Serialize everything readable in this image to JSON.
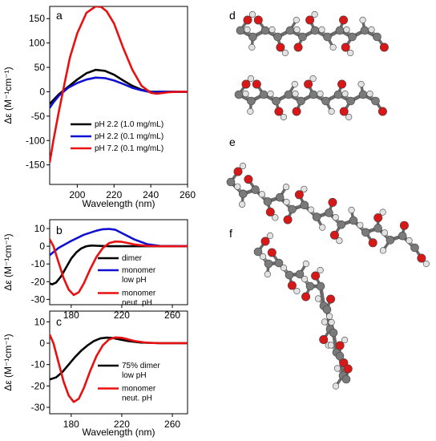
{
  "colors": {
    "black": "#000000",
    "blue": "#1010d0",
    "red": "#e81010",
    "atom_carbon": "#7a7a7a",
    "atom_oxygen": "#d81818",
    "atom_hydrogen": "#e2e2e2"
  },
  "chart_data": [
    {
      "id": "a",
      "panel_label": "a",
      "type": "line",
      "xlabel": "Wavelength (nm)",
      "ylabel": "Δε (M⁻¹cm⁻¹)",
      "xlim": [
        185,
        260
      ],
      "ylim": [
        -190,
        175
      ],
      "x_ticks": [
        200,
        220,
        240,
        260
      ],
      "y_ticks": [
        -150,
        -100,
        -50,
        0,
        50,
        100,
        150
      ],
      "legend_position": "lower-right",
      "series": [
        {
          "name": "pH 2.2 (1.0 mg/mL)",
          "color": "black",
          "points": [
            [
              185,
              -25
            ],
            [
              190,
              -5
            ],
            [
              195,
              10
            ],
            [
              200,
              25
            ],
            [
              205,
              38
            ],
            [
              210,
              45
            ],
            [
              215,
              43
            ],
            [
              220,
              35
            ],
            [
              225,
              23
            ],
            [
              230,
              12
            ],
            [
              235,
              4
            ],
            [
              240,
              0
            ],
            [
              245,
              0
            ],
            [
              250,
              0
            ],
            [
              255,
              0
            ],
            [
              260,
              0
            ]
          ]
        },
        {
          "name": "pH 2.2 (0.1 mg/mL)",
          "color": "blue",
          "points": [
            [
              185,
              -33
            ],
            [
              187,
              -22
            ],
            [
              190,
              -8
            ],
            [
              195,
              8
            ],
            [
              200,
              18
            ],
            [
              205,
              25
            ],
            [
              210,
              29
            ],
            [
              215,
              28
            ],
            [
              220,
              23
            ],
            [
              225,
              16
            ],
            [
              230,
              8
            ],
            [
              235,
              3
            ],
            [
              240,
              -1
            ],
            [
              245,
              0
            ],
            [
              250,
              0
            ],
            [
              260,
              0
            ]
          ]
        },
        {
          "name": "pH 7.2 (0.1 mg/mL)",
          "color": "red",
          "points": [
            [
              185,
              -145
            ],
            [
              187,
              -100
            ],
            [
              190,
              -40
            ],
            [
              193,
              15
            ],
            [
              196,
              70
            ],
            [
              200,
              120
            ],
            [
              205,
              162
            ],
            [
              210,
              175
            ],
            [
              213,
              174
            ],
            [
              216,
              165
            ],
            [
              220,
              140
            ],
            [
              225,
              90
            ],
            [
              230,
              45
            ],
            [
              235,
              12
            ],
            [
              240,
              -2
            ],
            [
              243,
              -4
            ],
            [
              250,
              -1
            ],
            [
              255,
              0
            ],
            [
              260,
              0
            ]
          ]
        }
      ]
    },
    {
      "id": "b",
      "panel_label": "b",
      "type": "line",
      "xlabel": "",
      "ylabel": "Δε (M⁻¹cm⁻¹)",
      "xlim": [
        163,
        272
      ],
      "ylim": [
        -33,
        15
      ],
      "x_ticks": [
        180,
        220,
        260
      ],
      "y_ticks": [
        -30,
        -20,
        -10,
        0,
        10
      ],
      "legend_position": "lower-right",
      "series": [
        {
          "name": "dimer",
          "color": "black",
          "points": [
            [
              163,
              -21
            ],
            [
              165,
              -21.5
            ],
            [
              168,
              -20.5
            ],
            [
              172,
              -17
            ],
            [
              176,
              -12
            ],
            [
              180,
              -7
            ],
            [
              184,
              -3.5
            ],
            [
              188,
              -1.2
            ],
            [
              192,
              0
            ],
            [
              196,
              0.4
            ],
            [
              200,
              0.3
            ],
            [
              210,
              0
            ],
            [
              220,
              0
            ],
            [
              240,
              0
            ],
            [
              272,
              0
            ]
          ]
        },
        {
          "name": "monomer low pH",
          "color": "blue",
          "points": [
            [
              163,
              -5
            ],
            [
              170,
              -1
            ],
            [
              180,
              3
            ],
            [
              190,
              6.5
            ],
            [
              200,
              8.8
            ],
            [
              205,
              9.6
            ],
            [
              210,
              9.8
            ],
            [
              215,
              9.3
            ],
            [
              220,
              7.5
            ],
            [
              230,
              3.8
            ],
            [
              240,
              1.2
            ],
            [
              250,
              0.2
            ],
            [
              272,
              0
            ]
          ]
        },
        {
          "name": "monomer neut. pH",
          "color": "red",
          "points": [
            [
              163,
              4
            ],
            [
              166,
              0
            ],
            [
              170,
              -9
            ],
            [
              174,
              -18
            ],
            [
              178,
              -24.5
            ],
            [
              182,
              -27.5
            ],
            [
              186,
              -26
            ],
            [
              190,
              -21
            ],
            [
              195,
              -13
            ],
            [
              200,
              -6
            ],
            [
              205,
              -1
            ],
            [
              210,
              1.8
            ],
            [
              215,
              2.7
            ],
            [
              220,
              2.5
            ],
            [
              225,
              1.8
            ],
            [
              230,
              1
            ],
            [
              240,
              0.2
            ],
            [
              250,
              0
            ],
            [
              272,
              0
            ]
          ]
        }
      ]
    },
    {
      "id": "c",
      "panel_label": "c",
      "type": "line",
      "xlabel": "Wavelength (nm)",
      "ylabel": "Δε (M⁻¹cm⁻¹)",
      "xlim": [
        163,
        272
      ],
      "ylim": [
        -33,
        15
      ],
      "x_ticks": [
        180,
        220,
        260
      ],
      "y_ticks": [
        -30,
        -20,
        -10,
        0,
        10
      ],
      "legend_position": "lower-right",
      "series": [
        {
          "name": "75% dimer low pH",
          "color": "black",
          "points": [
            [
              163,
              -17
            ],
            [
              168,
              -16
            ],
            [
              173,
              -13.5
            ],
            [
              178,
              -10
            ],
            [
              183,
              -6.5
            ],
            [
              188,
              -3.5
            ],
            [
              193,
              -1
            ],
            [
              198,
              1
            ],
            [
              203,
              2.2
            ],
            [
              208,
              2.6
            ],
            [
              213,
              2.4
            ],
            [
              218,
              1.8
            ],
            [
              225,
              1
            ],
            [
              235,
              0.3
            ],
            [
              250,
              0
            ],
            [
              272,
              0
            ]
          ]
        },
        {
          "name": "monomer neut. pH",
          "color": "red",
          "points": [
            [
              163,
              4
            ],
            [
              166,
              0
            ],
            [
              170,
              -9
            ],
            [
              174,
              -18
            ],
            [
              178,
              -24.5
            ],
            [
              182,
              -27.5
            ],
            [
              186,
              -26
            ],
            [
              190,
              -21
            ],
            [
              195,
              -13
            ],
            [
              200,
              -6
            ],
            [
              205,
              -1
            ],
            [
              210,
              1.8
            ],
            [
              215,
              2.7
            ],
            [
              220,
              2.5
            ],
            [
              225,
              1.8
            ],
            [
              230,
              1
            ],
            [
              240,
              0.2
            ],
            [
              250,
              0
            ],
            [
              272,
              0
            ]
          ]
        }
      ]
    }
  ],
  "structures": [
    {
      "id": "d",
      "panel_label": "d"
    },
    {
      "id": "e",
      "panel_label": "e"
    },
    {
      "id": "f",
      "panel_label": "f"
    }
  ]
}
